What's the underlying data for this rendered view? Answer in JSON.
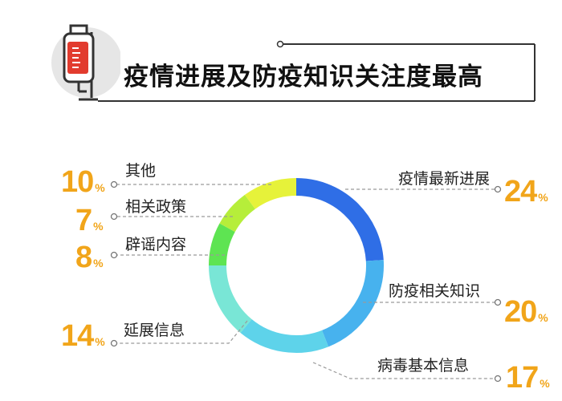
{
  "title": "疫情进展及防疫知识关注度最高",
  "icons": {
    "header": "iv-bag-icon"
  },
  "colors": {
    "accent": "#f1a51a"
  },
  "chart_data": {
    "type": "pie",
    "title": "疫情进展及防疫知识关注度最高",
    "unit": "%",
    "slices": [
      {
        "label": "疫情最新进展",
        "value": 24,
        "color": "#2f6ee6"
      },
      {
        "label": "防疫相关知识",
        "value": 20,
        "color": "#47b2ee"
      },
      {
        "label": "病毒基本信息",
        "value": 17,
        "color": "#5ed3ea"
      },
      {
        "label": "延展信息",
        "value": 14,
        "color": "#79e6d6"
      },
      {
        "label": "辟谣内容",
        "value": 8,
        "color": "#5ee452"
      },
      {
        "label": "相关政策",
        "value": 7,
        "color": "#b6ee3a"
      },
      {
        "label": "其他",
        "value": 10,
        "color": "#e6f23a"
      }
    ]
  }
}
